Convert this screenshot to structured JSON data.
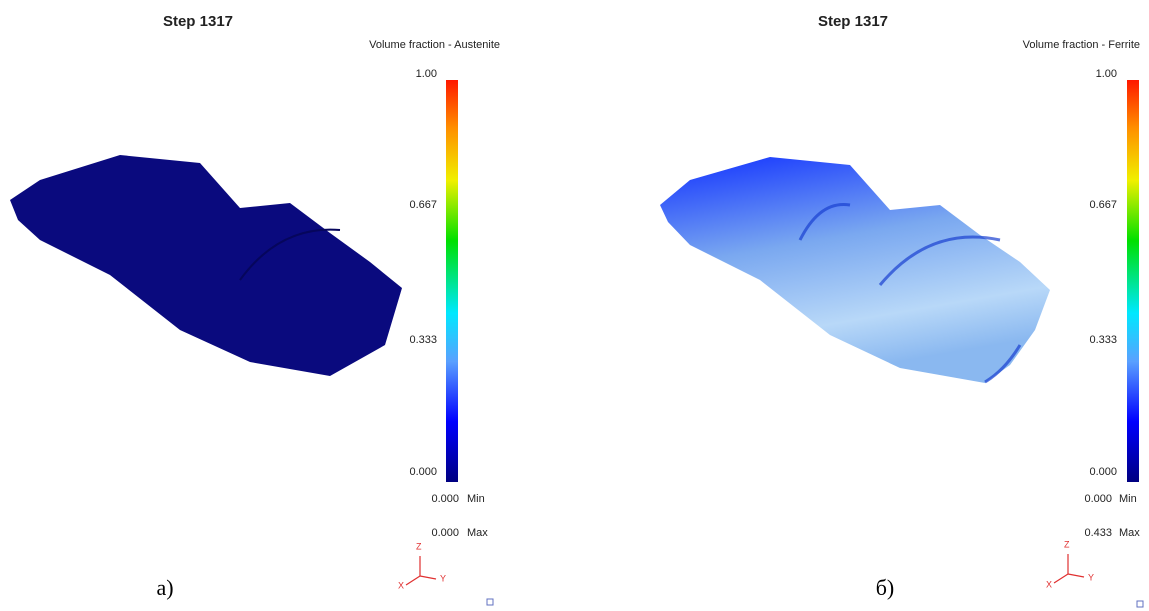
{
  "panels": [
    {
      "title": "Step 1317",
      "legend_title": "Volume fraction - Austenite",
      "scale_ticks": [
        "1.00",
        "0.667",
        "0.333",
        "0.000"
      ],
      "min": {
        "value": "0.000",
        "label": "Min"
      },
      "max": {
        "value": "0.000",
        "label": "Max"
      },
      "axes": {
        "z": "Z",
        "y": "Y",
        "x": "X"
      },
      "caption": "а)"
    },
    {
      "title": "Step 1317",
      "legend_title": "Volume fraction - Ferrite",
      "scale_ticks": [
        "1.00",
        "0.667",
        "0.333",
        "0.000"
      ],
      "min": {
        "value": "0.000",
        "label": "Min"
      },
      "max": {
        "value": "0.433",
        "label": "Max"
      },
      "axes": {
        "z": "Z",
        "y": "Y",
        "x": "X"
      },
      "caption": "б)"
    }
  ]
}
